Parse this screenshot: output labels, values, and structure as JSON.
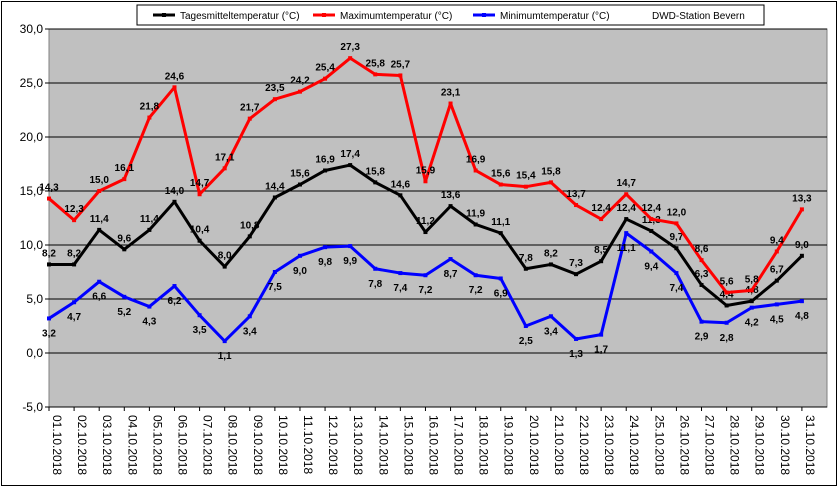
{
  "chart_data": {
    "type": "line",
    "station": "DWD-Station Bevern",
    "ylim": [
      -5,
      30
    ],
    "yticks": [
      "-5,0",
      "0,0",
      "5,0",
      "10,0",
      "15,0",
      "20,0",
      "25,0",
      "30,0"
    ],
    "ytick_values": [
      -5,
      0,
      5,
      10,
      15,
      20,
      25,
      30
    ],
    "grid": true,
    "legend_position": "top",
    "categories": [
      "01.10.2018",
      "02.10.2018",
      "03.10.2018",
      "04.10.2018",
      "05.10.2018",
      "06.10.2018",
      "07.10.2018",
      "08.10.2018",
      "09.10.2018",
      "10.10.2018",
      "11.10.2018",
      "12.10.2018",
      "13.10.2018",
      "14.10.2018",
      "15.10.2018",
      "16.10.2018",
      "17.10.2018",
      "18.10.2018",
      "19.10.2018",
      "20.10.2018",
      "21.10.2018",
      "22.10.2018",
      "23.10.2018",
      "24.10.2018",
      "25.10.2018",
      "26.10.2018",
      "27.10.2018",
      "28.10.2018",
      "29.10.2018",
      "30.10.2018",
      "31.10.2018"
    ],
    "series": [
      {
        "name": "Tagesmitteltemperatur (°C)",
        "color": "#000000",
        "values": [
          8.2,
          8.2,
          11.4,
          9.6,
          11.4,
          14.0,
          10.4,
          8.0,
          10.8,
          14.4,
          15.6,
          16.9,
          17.4,
          15.8,
          14.6,
          11.2,
          13.6,
          11.9,
          11.1,
          7.8,
          8.2,
          7.3,
          8.5,
          12.4,
          11.3,
          9.7,
          6.3,
          4.4,
          4.8,
          6.7,
          9.0
        ],
        "labels": [
          "8,2",
          "8,2",
          "11,4",
          "9,6",
          "11,4",
          "14,0",
          "10,4",
          "8,0",
          "10,8",
          "14,4",
          "15,6",
          "16,9",
          "17,4",
          "15,8",
          "14,6",
          "11,2",
          "13,6",
          "11,9",
          "11,1",
          "7,8",
          "8,2",
          "7,3",
          "8,5",
          "12,4",
          "11,3",
          "9,7",
          "6,3",
          "4,4",
          "4,8",
          "6,7",
          "9,0"
        ]
      },
      {
        "name": "Maximumtemperatur (°C)",
        "color": "#ff0000",
        "values": [
          14.3,
          12.3,
          15.0,
          16.1,
          21.8,
          24.6,
          14.7,
          17.1,
          21.7,
          23.5,
          24.2,
          25.4,
          27.3,
          25.8,
          25.7,
          15.9,
          23.1,
          16.9,
          15.6,
          15.4,
          15.8,
          13.7,
          12.4,
          14.7,
          12.4,
          12.0,
          8.6,
          5.6,
          5.8,
          9.4,
          13.3
        ],
        "labels": [
          "14,3",
          "12,3",
          "15,0",
          "16,1",
          "21,8",
          "24,6",
          "14,7",
          "17,1",
          "21,7",
          "23,5",
          "24,2",
          "25,4",
          "27,3",
          "25,8",
          "25,7",
          "15,9",
          "23,1",
          "16,9",
          "15,6",
          "15,4",
          "15,8",
          "13,7",
          "12,4",
          "14,7",
          "12,4",
          "12,0",
          "8,6",
          "5,6",
          "5,8",
          "9,4",
          "13,3"
        ]
      },
      {
        "name": "Minimumtemperatur (°C)",
        "color": "#0000ff",
        "values": [
          3.2,
          4.7,
          6.6,
          5.2,
          4.3,
          6.2,
          3.5,
          1.1,
          3.4,
          7.5,
          9.0,
          9.8,
          9.9,
          7.8,
          7.4,
          7.2,
          8.7,
          7.2,
          6.9,
          2.5,
          3.4,
          1.3,
          1.7,
          11.1,
          9.4,
          7.4,
          2.9,
          2.8,
          4.2,
          4.5,
          4.8
        ],
        "labels": [
          "3,2",
          "4,7",
          "6,6",
          "5,2",
          "4,3",
          "6,2",
          "3,5",
          "1,1",
          "3,4",
          "7,5",
          "9,0",
          "9,8",
          "9,9",
          "7,8",
          "7,4",
          "7,2",
          "8,7",
          "7,2",
          "6,9",
          "2,5",
          "3,4",
          "1,3",
          "1,7",
          "11,1",
          "9,4",
          "7,4",
          "2,9",
          "2,8",
          "4,2",
          "4,5",
          "4,8"
        ]
      }
    ]
  }
}
